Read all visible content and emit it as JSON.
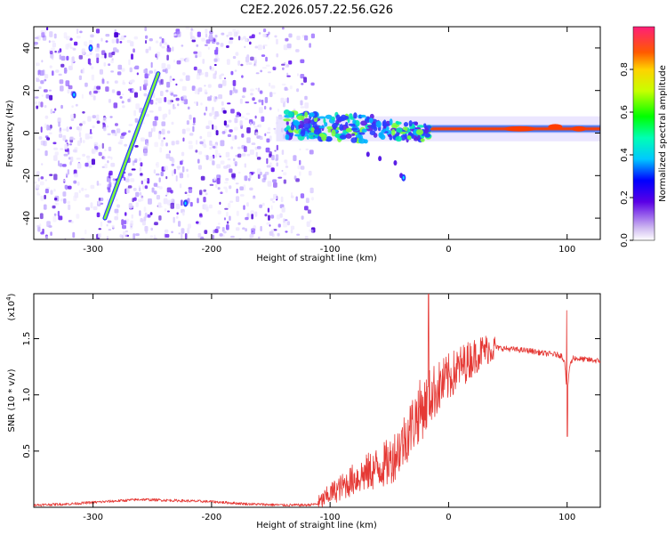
{
  "chart_data": [
    {
      "type": "heatmap",
      "title": "C2E2.2026.057.22.56.G26",
      "xlabel": "Height of straight line (km)",
      "ylabel": "Frequency (Hz)",
      "xlim": [
        -350,
        128
      ],
      "ylim": [
        -50,
        50
      ],
      "x_ticks": [
        -300,
        -200,
        -100,
        0,
        100
      ],
      "y_ticks": [
        -40,
        -20,
        0,
        20,
        40
      ],
      "x_tick_labels": [
        "-300",
        "-200",
        "-100",
        "0",
        "100"
      ],
      "y_tick_labels": [
        "-40",
        "-20",
        "0",
        "20",
        "40"
      ],
      "colorbar": {
        "label": "Normalized spectral amplitude",
        "range": [
          0,
          1
        ],
        "ticks": [
          0.0,
          0.2,
          0.4,
          0.6,
          0.8
        ],
        "tick_labels": [
          "0.0",
          "0.2",
          "0.4",
          "0.6",
          "0.8"
        ]
      },
      "features": {
        "noise_region_x": [
          -350,
          -115
        ],
        "meteor_streak": {
          "x": [
            -290,
            -245
          ],
          "y": [
            -40,
            28
          ]
        },
        "echo_band": {
          "x": [
            -138,
            128
          ],
          "y_center": 2
        },
        "isolated_points": [
          {
            "x": -302,
            "y": 40
          },
          {
            "x": -316,
            "y": 18
          },
          {
            "x": -222,
            "y": -33
          },
          {
            "x": -38,
            "y": -21
          }
        ]
      }
    },
    {
      "type": "line",
      "xlabel": "Height of straight line (km)",
      "ylabel": "SNR (10 * v/v)",
      "scale_label": "(x10",
      "scale_exponent": "4",
      "scale_suffix": ")",
      "xlim": [
        -350,
        128
      ],
      "ylim": [
        0,
        1.9
      ],
      "x_ticks": [
        -300,
        -200,
        -100,
        0,
        100
      ],
      "y_ticks": [
        0.5,
        1.0,
        1.5
      ],
      "x_tick_labels": [
        "-300",
        "-200",
        "-100",
        "0",
        "100"
      ],
      "y_tick_labels": [
        "0.5",
        "1.0",
        "1.5"
      ],
      "color": "#e53935",
      "series": [
        {
          "name": "SNR",
          "x": [
            -350,
            -320,
            -290,
            -260,
            -230,
            -200,
            -170,
            -140,
            -120,
            -110,
            -100,
            -90,
            -80,
            -70,
            -60,
            -50,
            -40,
            -30,
            -25,
            -20,
            -15,
            -10,
            -5,
            0,
            10,
            20,
            30,
            40,
            50,
            60,
            70,
            80,
            90,
            95,
            98,
            100,
            102,
            105,
            110,
            120,
            128
          ],
          "y": [
            0.02,
            0.03,
            0.05,
            0.07,
            0.06,
            0.05,
            0.03,
            0.02,
            0.02,
            0.03,
            0.12,
            0.18,
            0.25,
            0.3,
            0.35,
            0.4,
            0.55,
            0.75,
            0.85,
            0.9,
            1.0,
            1.05,
            1.1,
            1.15,
            1.25,
            1.33,
            1.4,
            1.42,
            1.41,
            1.4,
            1.39,
            1.37,
            1.36,
            1.35,
            1.3,
            1.0,
            1.25,
            1.33,
            1.32,
            1.31,
            1.3
          ]
        }
      ]
    }
  ]
}
